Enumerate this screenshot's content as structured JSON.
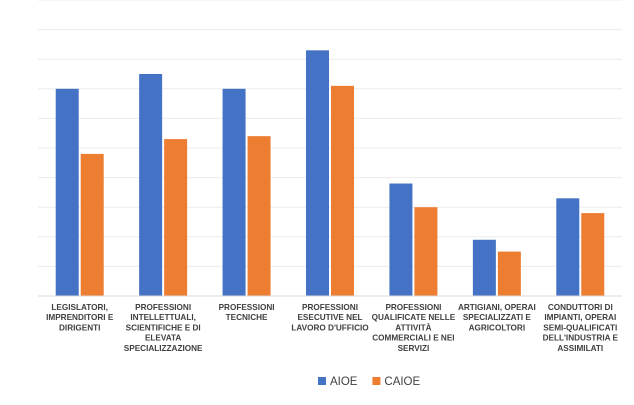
{
  "chart_data": {
    "type": "bar",
    "title": "",
    "xlabel": "",
    "ylabel": "",
    "ylim": [
      0,
      10
    ],
    "grid": true,
    "legend": "bottom-center",
    "categories": [
      [
        "LEGISLATORI,",
        "IMPRENDITORI E",
        "DIRIGENTI"
      ],
      [
        "PROFESSIONI",
        "INTELLETTUALI,",
        "SCIENTIFICHE E DI",
        "ELEVATA",
        "SPECIALIZZAZIONE"
      ],
      [
        "PROFESSIONI",
        "TECNICHE"
      ],
      [
        "PROFESSIONI",
        "ESECUTIVE NEL",
        "LAVORO D'UFFICIO"
      ],
      [
        "PROFESSIONI",
        "QUALIFICATE NELLE",
        "ATTIVITÀ",
        "COMMERCIALI E NEI",
        "SERVIZI"
      ],
      [
        "ARTIGIANI, OPERAI",
        "SPECIALIZZATI E",
        "AGRICOLTORI"
      ],
      [
        "CONDUTTORI DI",
        "IMPIANTI, OPERAI",
        "SEMI-QUALIFICATI",
        "DELL'INDUSTRIA E",
        "ASSIMILATI"
      ]
    ],
    "series": [
      {
        "name": "AIOE",
        "color": "#4472C4",
        "values": [
          7.0,
          7.5,
          7.0,
          8.3,
          3.8,
          1.9,
          3.3
        ]
      },
      {
        "name": "CAIOE",
        "color": "#ED7D31",
        "values": [
          4.8,
          5.3,
          5.4,
          7.1,
          3.0,
          1.5,
          2.8
        ]
      }
    ]
  }
}
